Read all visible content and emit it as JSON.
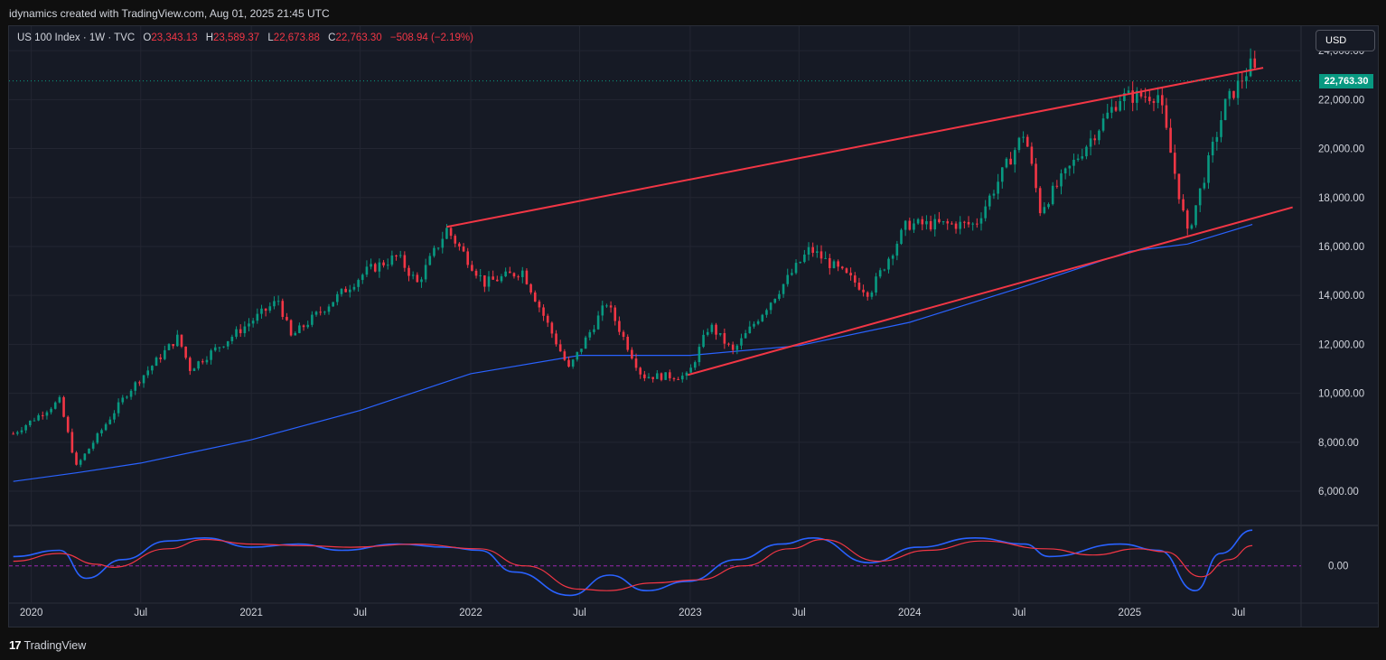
{
  "header": {
    "credit": "idynamics created with TradingView.com, Aug 01, 2025 21:45 UTC"
  },
  "legend": {
    "symbol": "US 100 Index · 1W · TVC",
    "open_label": "O",
    "open": "23,343.13",
    "high_label": "H",
    "high": "23,589.37",
    "low_label": "L",
    "low": "22,673.88",
    "close_label": "C",
    "close": "22,763.30",
    "change": "−508.94 (−2.19%)"
  },
  "currency_button": "USD",
  "last_price": "22,763.30",
  "footer": {
    "logo_mark": "17",
    "logo_text": "TradingView"
  },
  "colors": {
    "up": "#089981",
    "down": "#f23645",
    "ma_line": "#2962ff",
    "channel": "#f23645",
    "oscillator_fast": "#2962ff",
    "oscillator_slow": "#f23645",
    "background": "#161a25",
    "grid": "#232632"
  },
  "chart_data": {
    "type": "candlestick",
    "interval": "1W",
    "y_axis": {
      "ticks": [
        6000,
        8000,
        10000,
        12000,
        14000,
        16000,
        18000,
        20000,
        22000,
        24000
      ],
      "tick_labels": [
        "6,000.00",
        "8,000.00",
        "10,000.00",
        "12,000.00",
        "14,000.00",
        "16,000.00",
        "18,000.00",
        "20,000.00",
        "22,000.00",
        "24,000.00"
      ],
      "ylim": [
        4600,
        25000
      ]
    },
    "x_axis": {
      "ticks": [
        "2020",
        "Jul",
        "2021",
        "Jul",
        "2022",
        "Jul",
        "2023",
        "Jul",
        "2024",
        "Jul",
        "2025",
        "Jul"
      ],
      "tick_dates": [
        "2020-01-01",
        "2020-07-01",
        "2021-01-01",
        "2021-07-01",
        "2022-01-01",
        "2022-07-01",
        "2023-01-01",
        "2023-07-01",
        "2024-01-01",
        "2024-07-01",
        "2025-01-01",
        "2025-07-01"
      ],
      "xlim": [
        "2019-11-25",
        "2025-10-13"
      ]
    },
    "price_path": [
      {
        "date": "2019-12-02",
        "close": 8350
      },
      {
        "date": "2020-02-17",
        "close": 9700
      },
      {
        "date": "2020-03-16",
        "close": 7000
      },
      {
        "date": "2020-06-08",
        "close": 10000
      },
      {
        "date": "2020-09-01",
        "close": 12300
      },
      {
        "date": "2020-09-21",
        "close": 11000
      },
      {
        "date": "2021-02-15",
        "close": 13800
      },
      {
        "date": "2021-03-08",
        "close": 12300
      },
      {
        "date": "2021-07-12",
        "close": 15000
      },
      {
        "date": "2021-09-01",
        "close": 15600
      },
      {
        "date": "2021-10-04",
        "close": 14500
      },
      {
        "date": "2021-11-22",
        "close": 16700
      },
      {
        "date": "2022-01-24",
        "close": 14500
      },
      {
        "date": "2022-03-28",
        "close": 15000
      },
      {
        "date": "2022-06-13",
        "close": 11000
      },
      {
        "date": "2022-08-15",
        "close": 13700
      },
      {
        "date": "2022-10-13",
        "close": 10700
      },
      {
        "date": "2022-12-28",
        "close": 10700
      },
      {
        "date": "2023-02-02",
        "close": 12800
      },
      {
        "date": "2023-03-13",
        "close": 11700
      },
      {
        "date": "2023-07-19",
        "close": 15900
      },
      {
        "date": "2023-10-26",
        "close": 14100
      },
      {
        "date": "2023-12-27",
        "close": 16900
      },
      {
        "date": "2024-04-19",
        "close": 16900
      },
      {
        "date": "2024-07-10",
        "close": 20700
      },
      {
        "date": "2024-08-05",
        "close": 17500
      },
      {
        "date": "2024-12-16",
        "close": 22100
      },
      {
        "date": "2025-02-18",
        "close": 22200
      },
      {
        "date": "2025-04-07",
        "close": 16500
      },
      {
        "date": "2025-06-09",
        "close": 21800
      },
      {
        "date": "2025-07-24",
        "close": 23500
      },
      {
        "date": "2025-08-01",
        "close": 22763.3
      }
    ],
    "moving_average": [
      {
        "date": "2019-12-02",
        "value": 6400
      },
      {
        "date": "2020-03-16",
        "value": 6750
      },
      {
        "date": "2020-07-01",
        "value": 7150
      },
      {
        "date": "2021-01-01",
        "value": 8100
      },
      {
        "date": "2021-07-01",
        "value": 9300
      },
      {
        "date": "2022-01-01",
        "value": 10800
      },
      {
        "date": "2022-07-01",
        "value": 11550
      },
      {
        "date": "2023-01-01",
        "value": 11550
      },
      {
        "date": "2023-07-01",
        "value": 11950
      },
      {
        "date": "2024-01-01",
        "value": 12900
      },
      {
        "date": "2024-07-01",
        "value": 14300
      },
      {
        "date": "2025-01-01",
        "value": 15800
      },
      {
        "date": "2025-04-07",
        "value": 16100
      },
      {
        "date": "2025-07-24",
        "value": 16900
      }
    ],
    "channel_lines": [
      {
        "from": {
          "date": "2021-11-22",
          "value": 16800
        },
        "to": {
          "date": "2025-08-11",
          "value": 23300
        }
      },
      {
        "from": {
          "date": "2022-12-28",
          "value": 10750
        },
        "to": {
          "date": "2025-09-29",
          "value": 17600
        }
      }
    ],
    "last_price_line": 22763.3,
    "oscillator": {
      "zero_label": "0.00",
      "ylim": [
        -1.2,
        1.3
      ],
      "fast": [
        {
          "date": "2019-12-02",
          "value": 0.3
        },
        {
          "date": "2020-02-17",
          "value": 0.5
        },
        {
          "date": "2020-04-01",
          "value": -0.4
        },
        {
          "date": "2020-06-01",
          "value": 0.2
        },
        {
          "date": "2020-08-15",
          "value": 0.8
        },
        {
          "date": "2020-10-15",
          "value": 0.9
        },
        {
          "date": "2021-01-01",
          "value": 0.6
        },
        {
          "date": "2021-03-20",
          "value": 0.7
        },
        {
          "date": "2021-06-01",
          "value": 0.5
        },
        {
          "date": "2021-09-01",
          "value": 0.7
        },
        {
          "date": "2021-11-22",
          "value": 0.6
        },
        {
          "date": "2022-01-15",
          "value": 0.5
        },
        {
          "date": "2022-03-15",
          "value": -0.2
        },
        {
          "date": "2022-06-15",
          "value": -0.95
        },
        {
          "date": "2022-08-20",
          "value": -0.3
        },
        {
          "date": "2022-10-20",
          "value": -0.8
        },
        {
          "date": "2022-12-28",
          "value": -0.5
        },
        {
          "date": "2023-03-20",
          "value": 0.2
        },
        {
          "date": "2023-06-01",
          "value": 0.7
        },
        {
          "date": "2023-07-25",
          "value": 0.9
        },
        {
          "date": "2023-10-26",
          "value": 0.1
        },
        {
          "date": "2024-01-15",
          "value": 0.6
        },
        {
          "date": "2024-04-19",
          "value": 0.9
        },
        {
          "date": "2024-07-10",
          "value": 0.7
        },
        {
          "date": "2024-08-20",
          "value": 0.3
        },
        {
          "date": "2024-12-16",
          "value": 0.7
        },
        {
          "date": "2025-02-18",
          "value": 0.5
        },
        {
          "date": "2025-04-20",
          "value": -0.8
        },
        {
          "date": "2025-06-01",
          "value": 0.4
        },
        {
          "date": "2025-07-24",
          "value": 1.15
        }
      ],
      "slow": [
        {
          "date": "2019-12-02",
          "value": 0.15
        },
        {
          "date": "2020-02-17",
          "value": 0.4
        },
        {
          "date": "2020-04-20",
          "value": 0.05
        },
        {
          "date": "2020-05-15",
          "value": -0.05
        },
        {
          "date": "2020-08-15",
          "value": 0.55
        },
        {
          "date": "2020-10-15",
          "value": 0.85
        },
        {
          "date": "2021-01-01",
          "value": 0.7
        },
        {
          "date": "2021-04-01",
          "value": 0.65
        },
        {
          "date": "2021-06-15",
          "value": 0.6
        },
        {
          "date": "2021-10-01",
          "value": 0.7
        },
        {
          "date": "2022-01-15",
          "value": 0.55
        },
        {
          "date": "2022-04-01",
          "value": 0.0
        },
        {
          "date": "2022-07-01",
          "value": -0.75
        },
        {
          "date": "2022-08-15",
          "value": -0.8
        },
        {
          "date": "2022-11-01",
          "value": -0.55
        },
        {
          "date": "2023-01-15",
          "value": -0.45
        },
        {
          "date": "2023-04-01",
          "value": 0.0
        },
        {
          "date": "2023-06-15",
          "value": 0.55
        },
        {
          "date": "2023-08-10",
          "value": 0.85
        },
        {
          "date": "2023-11-10",
          "value": 0.15
        },
        {
          "date": "2024-02-01",
          "value": 0.5
        },
        {
          "date": "2024-05-01",
          "value": 0.8
        },
        {
          "date": "2024-08-15",
          "value": 0.55
        },
        {
          "date": "2024-11-01",
          "value": 0.35
        },
        {
          "date": "2025-01-15",
          "value": 0.55
        },
        {
          "date": "2025-03-01",
          "value": 0.45
        },
        {
          "date": "2025-04-30",
          "value": -0.35
        },
        {
          "date": "2025-06-15",
          "value": 0.2
        },
        {
          "date": "2025-07-24",
          "value": 0.65
        }
      ]
    }
  }
}
